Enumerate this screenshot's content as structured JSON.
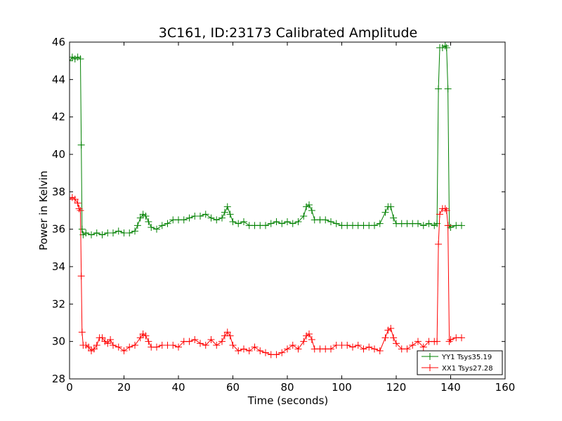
{
  "chart_data": {
    "type": "line",
    "title": "3C161, ID:23173 Calibrated Amplitude",
    "xlabel": "Time (seconds)",
    "ylabel": "Power in Kelvin",
    "xlim": [
      0,
      160
    ],
    "ylim": [
      28,
      46
    ],
    "xticks": [
      0,
      20,
      40,
      60,
      80,
      100,
      120,
      140,
      160
    ],
    "yticks": [
      28,
      30,
      32,
      34,
      36,
      38,
      40,
      42,
      44,
      46
    ],
    "grid": false,
    "legend_position": "bottom-right",
    "marker": "+",
    "series": [
      {
        "name": "YY1 Tsys35.19",
        "color": "#008000",
        "x": [
          0,
          1,
          2,
          3,
          4,
          4.3,
          4.6,
          5,
          6,
          8,
          10,
          12,
          14,
          16,
          18,
          20,
          22,
          24,
          25,
          26,
          27,
          28,
          29,
          30,
          32,
          34,
          36,
          38,
          40,
          42,
          44,
          46,
          48,
          50,
          52,
          54,
          56,
          57,
          58,
          59,
          60,
          62,
          64,
          66,
          68,
          70,
          72,
          74,
          76,
          78,
          80,
          82,
          84,
          86,
          87,
          88,
          89,
          90,
          92,
          94,
          96,
          98,
          100,
          102,
          104,
          106,
          108,
          110,
          112,
          114,
          116,
          117,
          118,
          119,
          120,
          122,
          124,
          126,
          128,
          130,
          132,
          134,
          135,
          135.5,
          136,
          137,
          138,
          138.5,
          139,
          139.5,
          140,
          142,
          144
        ],
        "y": [
          45.0,
          45.2,
          45.1,
          45.2,
          45.1,
          40.5,
          36.0,
          35.7,
          35.8,
          35.7,
          35.8,
          35.7,
          35.8,
          35.8,
          35.9,
          35.8,
          35.8,
          35.9,
          36.2,
          36.6,
          36.8,
          36.7,
          36.4,
          36.1,
          36.0,
          36.2,
          36.3,
          36.5,
          36.5,
          36.5,
          36.6,
          36.7,
          36.7,
          36.8,
          36.6,
          36.5,
          36.6,
          36.9,
          37.2,
          36.8,
          36.4,
          36.3,
          36.4,
          36.2,
          36.2,
          36.2,
          36.2,
          36.3,
          36.4,
          36.3,
          36.4,
          36.3,
          36.4,
          36.7,
          37.2,
          37.3,
          37.0,
          36.5,
          36.5,
          36.5,
          36.4,
          36.3,
          36.2,
          36.2,
          36.2,
          36.2,
          36.2,
          36.2,
          36.2,
          36.3,
          36.9,
          37.2,
          37.2,
          36.6,
          36.3,
          36.3,
          36.3,
          36.3,
          36.3,
          36.2,
          36.3,
          36.2,
          36.3,
          43.5,
          45.7,
          45.7,
          45.8,
          45.7,
          43.5,
          36.2,
          36.1,
          36.2,
          36.2
        ]
      },
      {
        "name": "XX1 Tsys27.28",
        "color": "#ff0000",
        "x": [
          0,
          1,
          2,
          3,
          3.5,
          4,
          4.3,
          4.6,
          5,
          6,
          7,
          8,
          9,
          10,
          11,
          12,
          13,
          14,
          15,
          16,
          18,
          20,
          22,
          24,
          26,
          27,
          28,
          29,
          30,
          32,
          34,
          36,
          38,
          40,
          42,
          44,
          46,
          48,
          50,
          52,
          54,
          56,
          57,
          58,
          59,
          60,
          62,
          64,
          66,
          68,
          70,
          72,
          74,
          76,
          78,
          80,
          82,
          84,
          86,
          87,
          88,
          89,
          90,
          92,
          94,
          96,
          98,
          100,
          102,
          104,
          106,
          108,
          110,
          112,
          114,
          116,
          117,
          118,
          119,
          120,
          122,
          124,
          126,
          128,
          130,
          132,
          134,
          135,
          135.5,
          136,
          137,
          138,
          138.5,
          139,
          139.5,
          140,
          142,
          144
        ],
        "y": [
          37.6,
          37.7,
          37.6,
          37.4,
          37.1,
          37.0,
          33.5,
          30.5,
          29.8,
          29.8,
          29.7,
          29.5,
          29.6,
          29.8,
          30.2,
          30.2,
          30.0,
          29.9,
          30.1,
          29.8,
          29.7,
          29.5,
          29.7,
          29.8,
          30.2,
          30.4,
          30.3,
          30.0,
          29.7,
          29.7,
          29.8,
          29.8,
          29.8,
          29.7,
          30.0,
          30.0,
          30.1,
          29.9,
          29.8,
          30.1,
          29.8,
          30.0,
          30.3,
          30.5,
          30.3,
          29.8,
          29.5,
          29.6,
          29.5,
          29.7,
          29.5,
          29.4,
          29.3,
          29.3,
          29.4,
          29.6,
          29.8,
          29.6,
          30.0,
          30.3,
          30.4,
          30.1,
          29.6,
          29.6,
          29.6,
          29.6,
          29.8,
          29.8,
          29.8,
          29.7,
          29.8,
          29.6,
          29.7,
          29.6,
          29.5,
          30.2,
          30.6,
          30.7,
          30.2,
          29.9,
          29.6,
          29.6,
          29.8,
          30.0,
          29.7,
          30.0,
          30.0,
          30.0,
          35.2,
          36.8,
          37.1,
          37.1,
          37.0,
          36.2,
          30.0,
          30.1,
          30.2,
          30.2
        ]
      }
    ]
  }
}
